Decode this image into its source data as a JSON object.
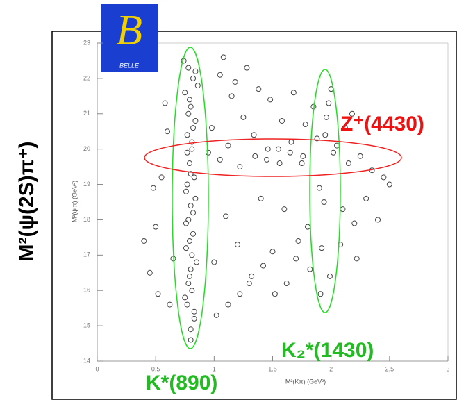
{
  "chart_data": {
    "type": "scatter",
    "y_label_main": "M²(ψ(2S)π⁺)",
    "x_label": "M²(Kπ) (GeV²)",
    "y_label": "M²(ψ'π) (GeV²)",
    "logo_letter": "B",
    "logo_text": "BELLE",
    "annotations": [
      "Z⁺(4430)",
      "K₂*(1430)",
      "K*(890)"
    ],
    "color": "#444444",
    "xlim": [
      0,
      3
    ],
    "xticks": [
      0,
      0.5,
      1,
      1.5,
      2,
      2.5,
      3
    ],
    "ylim": [
      14,
      23
    ],
    "yticks": [
      14,
      15,
      16,
      17,
      18,
      19,
      20,
      21,
      22,
      23
    ],
    "x": [
      0.78,
      0.82,
      0.75,
      0.8,
      0.84,
      0.77,
      0.81,
      0.79,
      0.83,
      0.76,
      0.8,
      0.78,
      0.82,
      0.76,
      0.85,
      0.79,
      0.81,
      0.77,
      0.83,
      0.8,
      0.74,
      0.86,
      0.79,
      0.82,
      0.77,
      0.8,
      0.84,
      0.76,
      0.81,
      0.78,
      0.83,
      0.75,
      0.8,
      0.79,
      0.82,
      0.77,
      0.81,
      0.78,
      0.84,
      0.8,
      0.45,
      0.5,
      0.55,
      0.6,
      0.62,
      0.48,
      0.58,
      0.65,
      0.4,
      0.52,
      1.05,
      1.15,
      1.25,
      1.35,
      1.45,
      1.55,
      1.65,
      1.75,
      1.85,
      1.95,
      1.0,
      1.1,
      1.2,
      1.3,
      1.4,
      1.5,
      1.6,
      1.7,
      1.8,
      1.9,
      1.02,
      1.12,
      1.22,
      1.32,
      1.42,
      1.52,
      1.62,
      1.72,
      1.82,
      1.92,
      2.05,
      2.15,
      2.25,
      2.35,
      2.45,
      2.1,
      2.2,
      2.3,
      2.4,
      2.5,
      1.08,
      1.18,
      1.28,
      1.38,
      1.48,
      1.58,
      1.68,
      1.78,
      1.88,
      1.98,
      0.95,
      1.05,
      0.98,
      1.12,
      1.22,
      1.34,
      1.46,
      1.56,
      1.66,
      1.76,
      2.0,
      1.96,
      2.02,
      1.94,
      2.08,
      1.99,
      2.12,
      1.91,
      2.22,
      2.18
    ],
    "y": [
      22.3,
      22.0,
      21.6,
      21.2,
      20.8,
      20.4,
      20.0,
      19.6,
      19.2,
      18.8,
      18.4,
      18.0,
      17.6,
      17.2,
      16.8,
      16.4,
      16.0,
      15.6,
      15.2,
      14.9,
      22.5,
      21.8,
      21.4,
      20.6,
      19.9,
      19.3,
      18.6,
      17.9,
      17.0,
      16.2,
      15.4,
      15.8,
      16.6,
      17.4,
      18.2,
      19.0,
      20.2,
      21.0,
      22.2,
      14.6,
      16.5,
      17.8,
      19.2,
      20.5,
      15.6,
      18.9,
      21.3,
      16.9,
      17.4,
      15.9,
      22.1,
      21.5,
      20.9,
      19.8,
      19.7,
      20.0,
      19.9,
      19.6,
      21.2,
      20.4,
      16.8,
      18.1,
      17.3,
      16.2,
      18.6,
      17.1,
      18.3,
      16.9,
      17.8,
      18.9,
      15.3,
      15.6,
      15.9,
      16.4,
      16.7,
      15.9,
      16.2,
      17.4,
      16.6,
      17.2,
      20.1,
      19.6,
      19.8,
      19.4,
      19.2,
      18.3,
      17.9,
      18.6,
      18.0,
      19.0,
      22.6,
      21.9,
      22.3,
      21.7,
      21.4,
      20.8,
      21.6,
      20.7,
      20.3,
      21.3,
      19.9,
      19.7,
      20.6,
      20.1,
      19.5,
      20.4,
      20.0,
      19.6,
      20.2,
      19.8,
      21.7,
      20.9,
      19.9,
      18.5,
      17.3,
      16.4,
      20.6,
      15.9,
      16.9,
      21.0
    ]
  }
}
